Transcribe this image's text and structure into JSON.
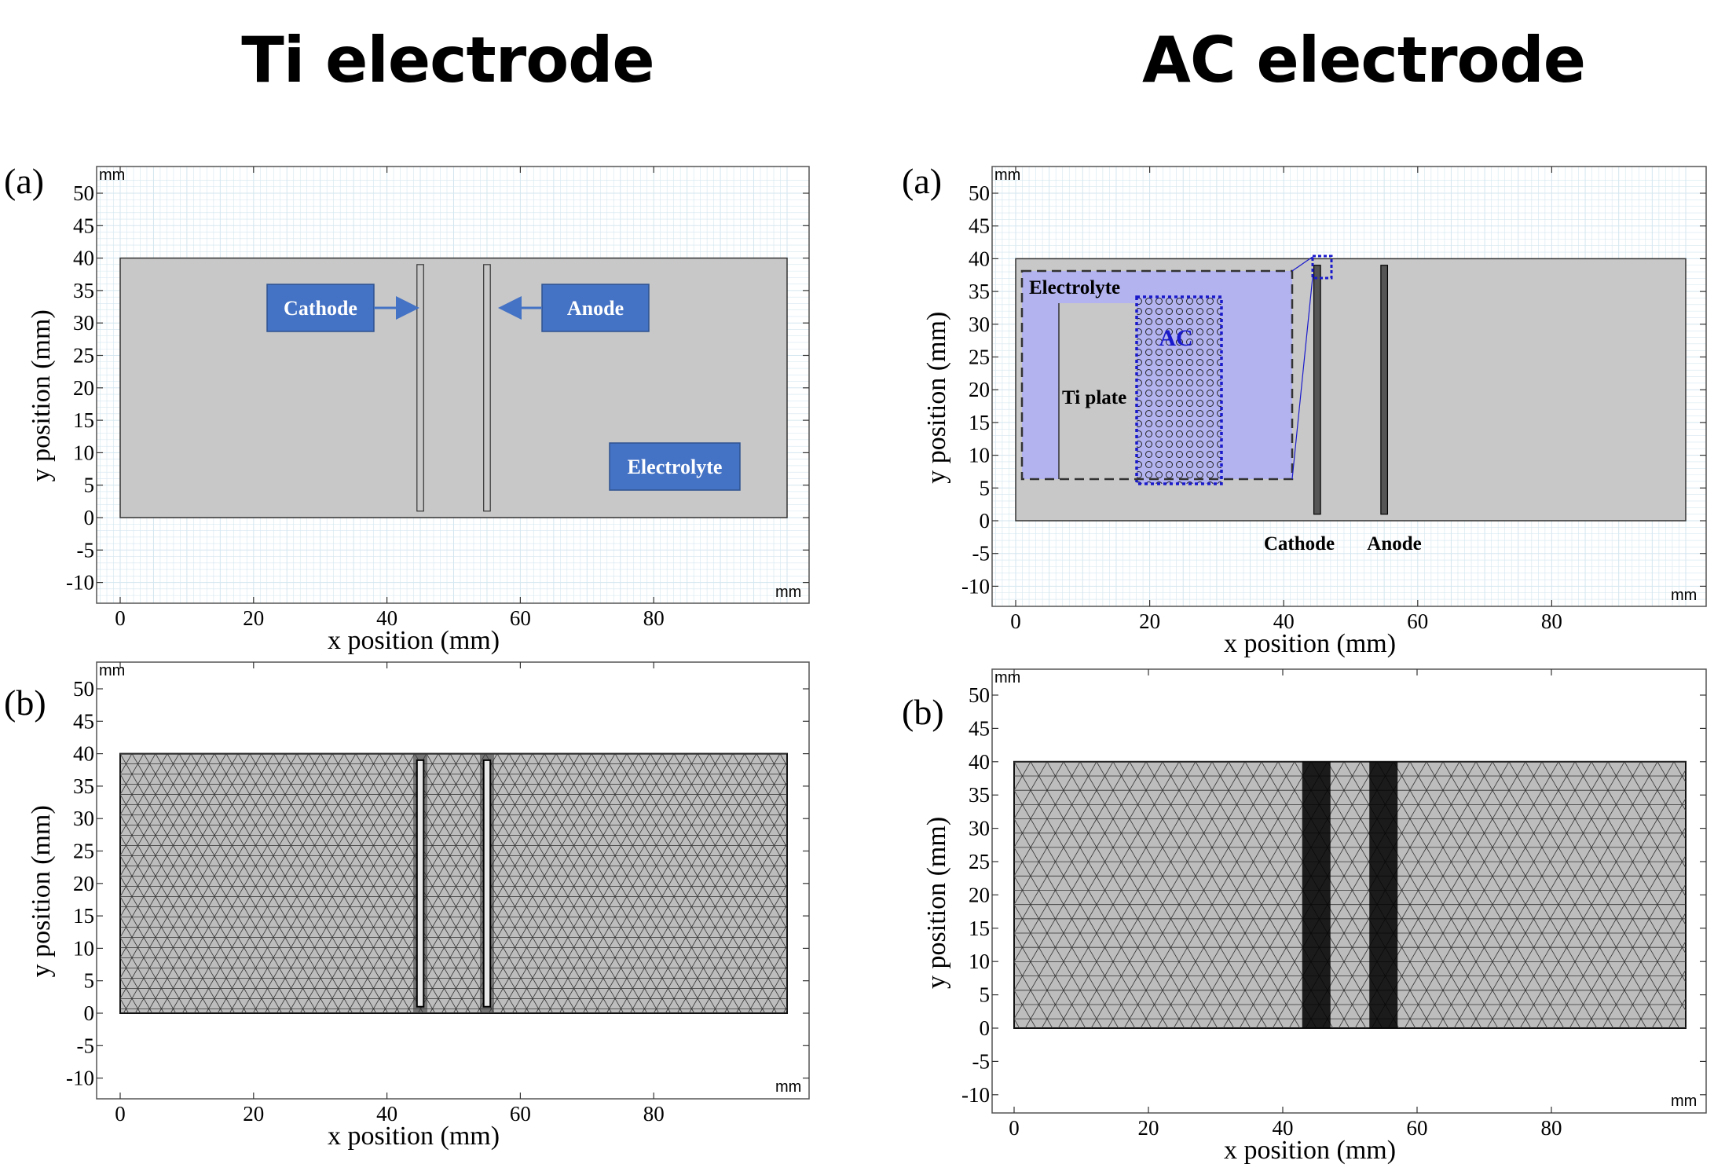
{
  "headings": {
    "ti": "Ti electrode",
    "ac": "AC electrode"
  },
  "panel_letters": {
    "a": "(a)",
    "b": "(b)"
  },
  "axis": {
    "x_label": "x position  (mm)",
    "y_label": "y position  (mm)",
    "unit": "mm",
    "x_ticks": [
      0,
      20,
      40,
      60,
      80
    ],
    "y_ticks": [
      50,
      45,
      40,
      35,
      30,
      25,
      20,
      15,
      10,
      5,
      0,
      -5,
      -10
    ],
    "x_range": [
      -3,
      100
    ],
    "y_range": [
      -12,
      52
    ]
  },
  "geometry": {
    "domain": {
      "x": [
        0,
        100
      ],
      "y": [
        0,
        40
      ]
    },
    "ti_cathode": {
      "x": [
        44.5,
        45.5
      ],
      "y": [
        1,
        39
      ]
    },
    "ti_anode": {
      "x": [
        54.5,
        55.5
      ],
      "y": [
        1,
        39
      ]
    }
  },
  "labels": {
    "cathode": "Cathode",
    "anode": "Anode",
    "electrolyte": "Electrolyte",
    "ac": "AC",
    "ti_plate": "Ti plate"
  },
  "colors": {
    "label_box": "#4472c4",
    "domain_fill": "#c8c8c8",
    "grid": "#cfe3ee",
    "inset_fill": "#b3b3f0",
    "ac_border": "#1a1acc"
  }
}
